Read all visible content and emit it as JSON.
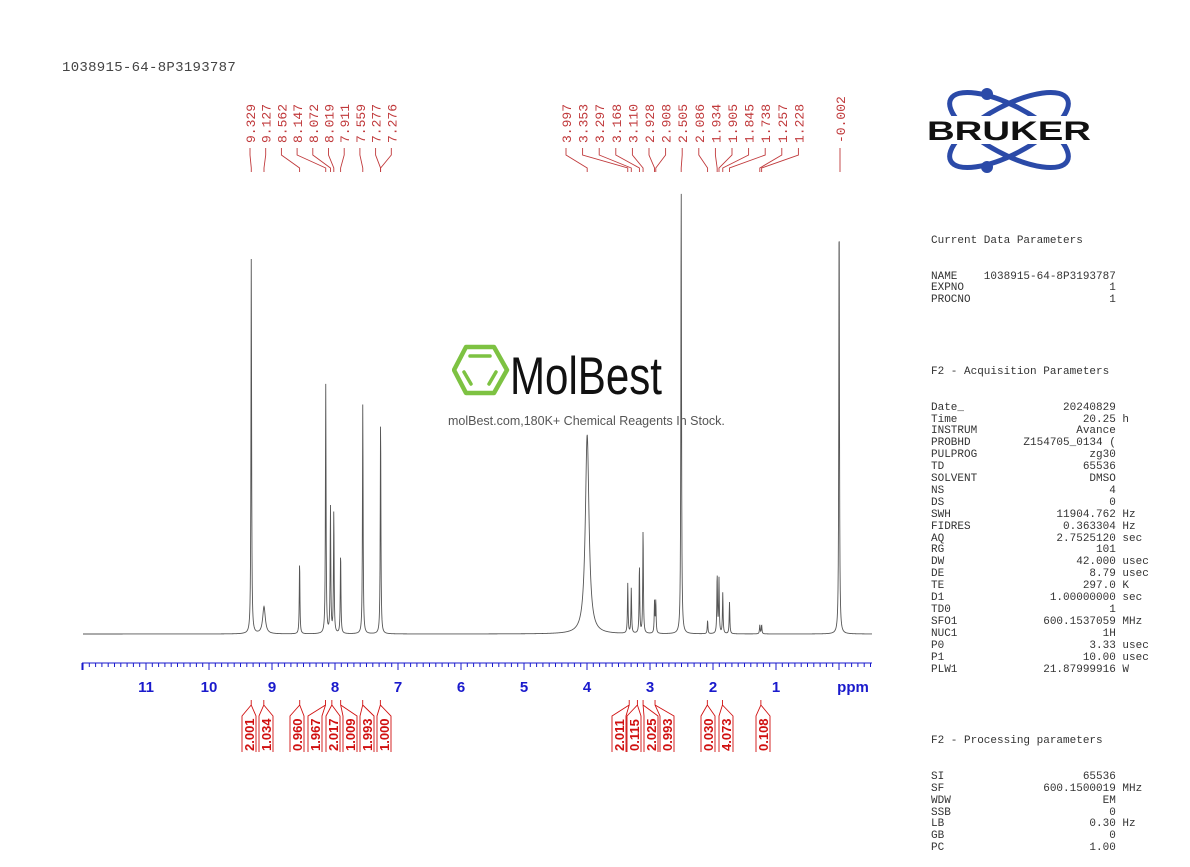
{
  "document": {
    "title": "1038915-64-8P3193787"
  },
  "watermark": {
    "brand": "MolBest",
    "tagline": "molBest.com,180K+ Chemical Reagents In Stock.",
    "logo_color": "#7dc242"
  },
  "vendor_logo": {
    "text": "BRUKER",
    "orbit_color": "#2b4aa8"
  },
  "parameters": {
    "current": {
      "heading": "Current Data Parameters",
      "rows": [
        {
          "key": "NAME",
          "value": "1038915-64-8P3193787",
          "unit": ""
        },
        {
          "key": "EXPNO",
          "value": "1",
          "unit": ""
        },
        {
          "key": "PROCNO",
          "value": "1",
          "unit": ""
        }
      ]
    },
    "acquisition": {
      "heading": "F2 - Acquisition Parameters",
      "rows": [
        {
          "key": "Date_",
          "value": "20240829",
          "unit": ""
        },
        {
          "key": "Time",
          "value": "20.25",
          "unit": "h"
        },
        {
          "key": "INSTRUM",
          "value": "Avance",
          "unit": ""
        },
        {
          "key": "PROBHD",
          "value": "Z154705_0134 (",
          "unit": ""
        },
        {
          "key": "PULPROG",
          "value": "zg30",
          "unit": ""
        },
        {
          "key": "TD",
          "value": "65536",
          "unit": ""
        },
        {
          "key": "SOLVENT",
          "value": "DMSO",
          "unit": ""
        },
        {
          "key": "NS",
          "value": "4",
          "unit": ""
        },
        {
          "key": "DS",
          "value": "0",
          "unit": ""
        },
        {
          "key": "SWH",
          "value": "11904.762",
          "unit": "Hz"
        },
        {
          "key": "FIDRES",
          "value": "0.363304",
          "unit": "Hz"
        },
        {
          "key": "AQ",
          "value": "2.7525120",
          "unit": "sec"
        },
        {
          "key": "RG",
          "value": "101",
          "unit": ""
        },
        {
          "key": "DW",
          "value": "42.000",
          "unit": "usec"
        },
        {
          "key": "DE",
          "value": "8.79",
          "unit": "usec"
        },
        {
          "key": "TE",
          "value": "297.0",
          "unit": "K"
        },
        {
          "key": "D1",
          "value": "1.00000000",
          "unit": "sec"
        },
        {
          "key": "TD0",
          "value": "1",
          "unit": ""
        },
        {
          "key": "SFO1",
          "value": "600.1537059",
          "unit": "MHz"
        },
        {
          "key": "NUC1",
          "value": "1H",
          "unit": ""
        },
        {
          "key": "P0",
          "value": "3.33",
          "unit": "usec"
        },
        {
          "key": "P1",
          "value": "10.00",
          "unit": "usec"
        },
        {
          "key": "PLW1",
          "value": "21.87999916",
          "unit": "W"
        }
      ]
    },
    "processing": {
      "heading": "F2 - Processing parameters",
      "rows": [
        {
          "key": "SI",
          "value": "65536",
          "unit": ""
        },
        {
          "key": "SF",
          "value": "600.1500019",
          "unit": "MHz"
        },
        {
          "key": "WDW",
          "value": "EM",
          "unit": ""
        },
        {
          "key": "SSB",
          "value": "0",
          "unit": ""
        },
        {
          "key": "LB",
          "value": "0.30",
          "unit": "Hz"
        },
        {
          "key": "GB",
          "value": "0",
          "unit": ""
        },
        {
          "key": "PC",
          "value": "1.00",
          "unit": ""
        }
      ]
    }
  },
  "chart_data": {
    "type": "line",
    "title": "1038915-64-8P3193787",
    "xlabel": "ppm",
    "ylabel": "",
    "xlim": [
      12.0,
      -0.5
    ],
    "x_reversed": true,
    "grid": false,
    "x_ticks": [
      11,
      10,
      9,
      8,
      7,
      6,
      5,
      4,
      3,
      2,
      1
    ],
    "x_tick_labels": [
      "11",
      "10",
      "9",
      "8",
      "7",
      "6",
      "5",
      "4",
      "3",
      "2",
      "1"
    ],
    "axis_unit_label": "ppm",
    "colors": {
      "spectrum": "#555555",
      "annotation": "#c0393b",
      "axis": "#1a1acc",
      "integral": "#d01010"
    },
    "peak_labels_left": [
      "9.329",
      "9.127",
      "8.562",
      "8.147",
      "8.072",
      "8.019",
      "7.911",
      "7.559",
      "7.277",
      "7.276"
    ],
    "peak_labels_right": [
      "3.997",
      "3.353",
      "3.297",
      "3.168",
      "3.110",
      "2.928",
      "2.908",
      "2.505",
      "2.086",
      "1.934",
      "1.905",
      "1.845",
      "1.738",
      "1.257",
      "1.228",
      "-0.002"
    ],
    "peaks": [
      {
        "ppm": 9.329,
        "height": 0.83
      },
      {
        "ppm": 9.127,
        "height": 0.06
      },
      {
        "ppm": 8.562,
        "height": 0.16
      },
      {
        "ppm": 8.147,
        "height": 0.55
      },
      {
        "ppm": 8.072,
        "height": 0.28
      },
      {
        "ppm": 8.019,
        "height": 0.27
      },
      {
        "ppm": 7.911,
        "height": 0.18
      },
      {
        "ppm": 7.559,
        "height": 0.51
      },
      {
        "ppm": 7.277,
        "height": 0.25
      },
      {
        "ppm": 7.276,
        "height": 0.23
      },
      {
        "ppm": 3.997,
        "height": 0.44
      },
      {
        "ppm": 3.353,
        "height": 0.11
      },
      {
        "ppm": 3.297,
        "height": 0.1
      },
      {
        "ppm": 3.168,
        "height": 0.15
      },
      {
        "ppm": 3.11,
        "height": 0.23
      },
      {
        "ppm": 2.928,
        "height": 0.07
      },
      {
        "ppm": 2.908,
        "height": 0.07
      },
      {
        "ppm": 2.505,
        "height": 1.0
      },
      {
        "ppm": 2.086,
        "height": 0.03
      },
      {
        "ppm": 1.934,
        "height": 0.13
      },
      {
        "ppm": 1.905,
        "height": 0.12
      },
      {
        "ppm": 1.845,
        "height": 0.09
      },
      {
        "ppm": 1.738,
        "height": 0.07
      },
      {
        "ppm": 1.257,
        "height": 0.02
      },
      {
        "ppm": 1.228,
        "height": 0.02
      },
      {
        "ppm": -0.002,
        "height": 0.96
      }
    ],
    "integrals": [
      {
        "value": "2.001",
        "ppm": 9.33
      },
      {
        "value": "1.034",
        "ppm": 9.13
      },
      {
        "value": "0.960",
        "ppm": 8.56
      },
      {
        "value": "1.967",
        "ppm": 8.15
      },
      {
        "value": "2.017",
        "ppm": 8.05
      },
      {
        "value": "1.009",
        "ppm": 7.91
      },
      {
        "value": "1.993",
        "ppm": 7.56
      },
      {
        "value": "1.000",
        "ppm": 7.28
      },
      {
        "value": "2.011",
        "ppm": 3.33
      },
      {
        "value": "0.115",
        "ppm": 3.2
      },
      {
        "value": "2.025",
        "ppm": 3.11
      },
      {
        "value": "0.993",
        "ppm": 2.92
      },
      {
        "value": "0.030",
        "ppm": 2.09
      },
      {
        "value": "4.073",
        "ppm": 1.85
      },
      {
        "value": "0.108",
        "ppm": 1.24
      }
    ]
  }
}
